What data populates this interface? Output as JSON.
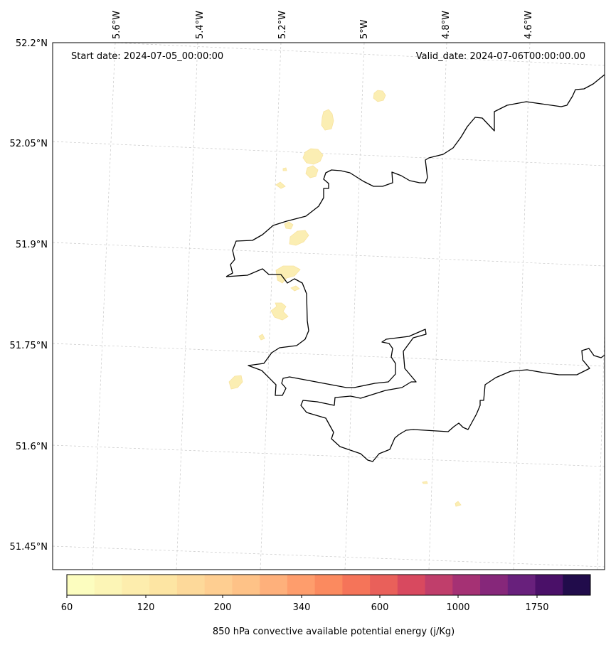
{
  "map": {
    "start_date": "Start date: 2024-07-05_00:00:00",
    "valid_date": "Valid_date: 2024-07-06T00:00:00.00",
    "lon_labels": [
      "5.6°W",
      "5.4°W",
      "5.2°W",
      "5°W",
      "4.8°W",
      "4.6°W"
    ],
    "lat_labels": [
      "52.2°N",
      "52.05°N",
      "51.9°N",
      "51.75°N",
      "51.6°N",
      "51.45°N"
    ],
    "gridlines": true,
    "coastline_color": "#000000"
  },
  "colorbar": {
    "label": "850 hPa convective available potential energy (j/Kg)",
    "tick_labels": [
      "60",
      "120",
      "200",
      "340",
      "600",
      "1000",
      "1750"
    ],
    "colors": [
      "#fcfdbf",
      "#fcf5b6",
      "#fdedad",
      "#fde5a3",
      "#fdd99a",
      "#fece91",
      "#fec287",
      "#feb07b",
      "#fe9d6c",
      "#fb8a5f",
      "#f57459",
      "#e9605a",
      "#d8495f",
      "#c03e6b",
      "#a53174",
      "#86277a",
      "#68207c",
      "#4a1068",
      "#210c4b"
    ],
    "colormap": "magma_r"
  },
  "cape_patches": {
    "fill_color": "#fbeeb3",
    "count": 16
  }
}
